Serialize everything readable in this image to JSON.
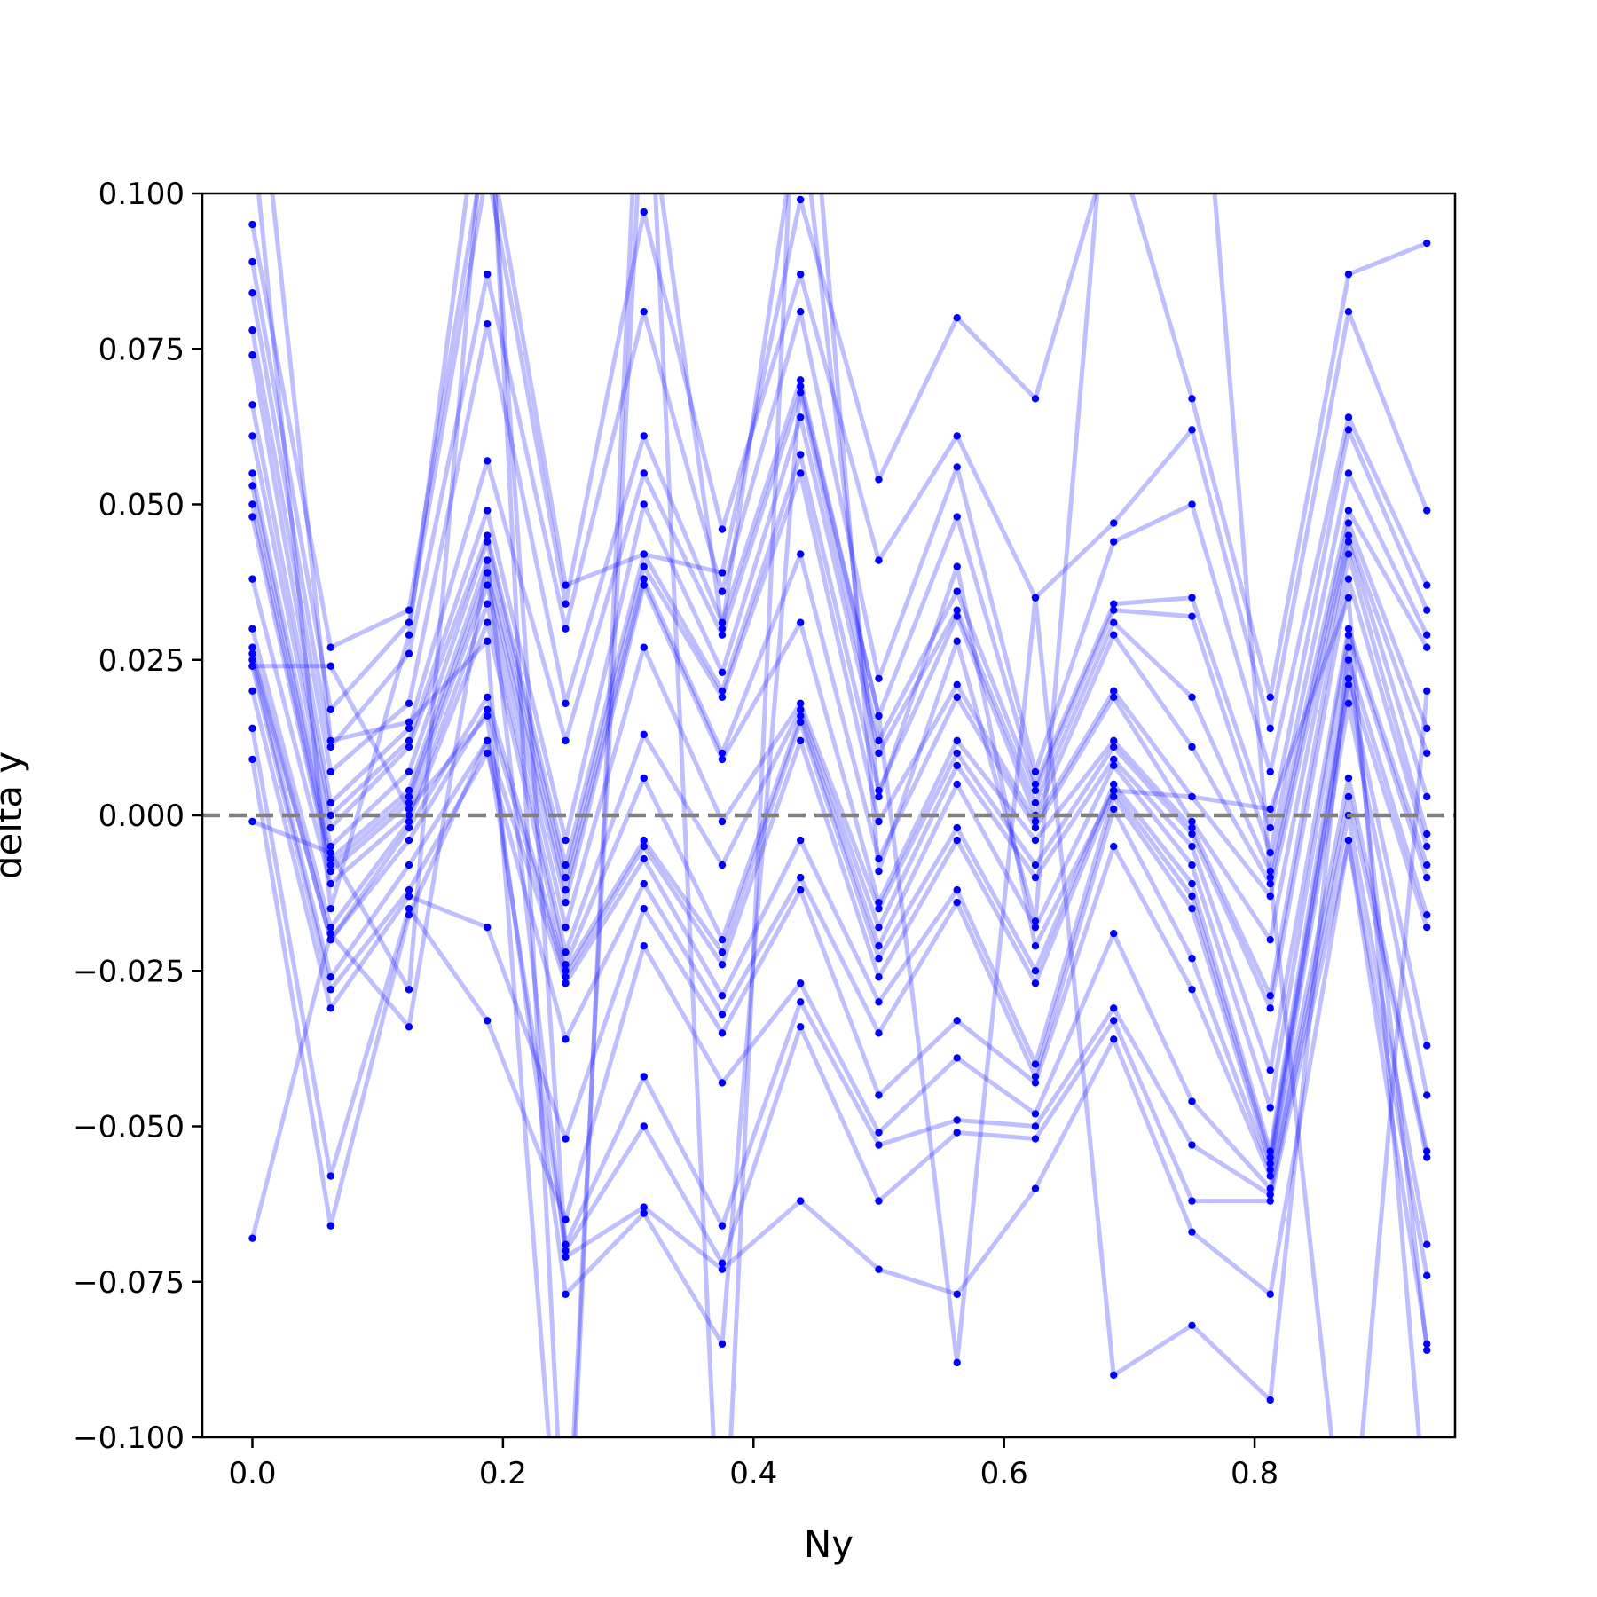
{
  "chart_data": {
    "type": "line",
    "title": "",
    "xlabel": "Ny",
    "ylabel": "delta y",
    "xlim": [
      -0.04,
      0.96
    ],
    "ylim": [
      -0.1,
      0.1
    ],
    "xticks": [
      0.0,
      0.2,
      0.4,
      0.6,
      0.8
    ],
    "xtick_labels": [
      "0.0",
      "0.2",
      "0.4",
      "0.6",
      "0.8"
    ],
    "yticks": [
      0.1,
      0.075,
      0.05,
      0.025,
      0.0,
      -0.025,
      -0.05,
      -0.075,
      -0.1
    ],
    "ytick_labels": [
      "0.100",
      "0.075",
      "0.050",
      "0.025",
      "0.000",
      "−0.025",
      "−0.050",
      "−0.075",
      "−0.100"
    ],
    "grid": false,
    "legend": "none",
    "x": [
      0.0,
      0.0625,
      0.125,
      0.1875,
      0.25,
      0.3125,
      0.375,
      0.4375,
      0.5,
      0.5625,
      0.625,
      0.6875,
      0.75,
      0.8125,
      0.875,
      0.9375
    ],
    "reference_line": {
      "y": 0.0,
      "style": "dashed",
      "color": "#808080"
    },
    "series_style": {
      "color": "#0000ff",
      "line_alpha": 0.25,
      "marker": "dot"
    },
    "series": [
      {
        "values": [
          0.095,
          0.027,
          0.033,
          0.11,
          0.037,
          0.042,
          0.039,
          0.099,
          0.054,
          0.08,
          0.067,
          0.11,
          0.067,
          0.019,
          0.087,
          0.092
        ]
      },
      {
        "values": [
          0.089,
          0.017,
          0.031,
          0.104,
          0.034,
          0.097,
          0.046,
          0.087,
          0.041,
          0.061,
          0.035,
          0.047,
          0.062,
          0.014,
          0.081,
          0.049
        ]
      },
      {
        "values": [
          0.084,
          0.011,
          0.026,
          0.087,
          0.03,
          0.081,
          0.036,
          0.081,
          0.022,
          0.056,
          0.007,
          0.044,
          0.05,
          0.007,
          0.064,
          0.037
        ]
      },
      {
        "values": [
          0.078,
          0.007,
          0.018,
          0.079,
          0.018,
          0.061,
          0.031,
          0.07,
          0.016,
          0.048,
          0.005,
          0.034,
          0.035,
          -0.002,
          0.062,
          0.033
        ]
      },
      {
        "values": [
          0.074,
          0.002,
          0.014,
          0.057,
          0.012,
          0.055,
          0.029,
          0.068,
          0.012,
          0.036,
          0.004,
          0.033,
          0.032,
          -0.006,
          0.055,
          0.029
        ]
      },
      {
        "values": [
          0.066,
          0.0,
          0.012,
          0.049,
          -0.004,
          0.05,
          0.023,
          0.064,
          0.01,
          0.033,
          0.002,
          0.031,
          0.019,
          -0.009,
          0.049,
          0.027
        ]
      },
      {
        "values": [
          0.061,
          -0.002,
          0.011,
          0.045,
          -0.008,
          0.042,
          0.02,
          0.058,
          0.004,
          0.032,
          0.0,
          0.029,
          0.011,
          -0.011,
          0.047,
          0.014
        ]
      },
      {
        "values": [
          0.055,
          -0.005,
          0.007,
          0.044,
          -0.01,
          0.04,
          0.019,
          0.055,
          -0.001,
          0.021,
          -0.001,
          0.02,
          0.003,
          -0.013,
          0.045,
          0.01
        ]
      },
      {
        "values": [
          0.053,
          -0.007,
          0.004,
          0.041,
          -0.012,
          0.038,
          0.01,
          0.042,
          -0.007,
          0.019,
          -0.002,
          0.019,
          -0.001,
          -0.02,
          0.044,
          0.003
        ]
      },
      {
        "values": [
          0.05,
          -0.008,
          0.003,
          0.039,
          -0.014,
          0.037,
          0.009,
          0.031,
          -0.014,
          0.012,
          -0.004,
          0.012,
          -0.002,
          -0.029,
          0.042,
          -0.003
        ]
      },
      {
        "values": [
          0.048,
          -0.009,
          0.002,
          0.037,
          -0.018,
          0.027,
          -0.001,
          0.018,
          -0.015,
          0.01,
          -0.008,
          0.011,
          -0.003,
          -0.031,
          0.038,
          -0.005
        ]
      },
      {
        "values": [
          0.038,
          -0.011,
          0.0,
          0.034,
          -0.022,
          0.013,
          -0.008,
          0.017,
          -0.018,
          0.008,
          -0.01,
          0.009,
          -0.005,
          -0.041,
          0.03,
          -0.008
        ]
      },
      {
        "values": [
          0.03,
          -0.018,
          -0.001,
          0.031,
          -0.024,
          0.006,
          -0.02,
          0.016,
          -0.021,
          0.005,
          -0.018,
          0.008,
          -0.008,
          -0.047,
          0.029,
          -0.01
        ]
      },
      {
        "values": [
          0.027,
          -0.02,
          -0.002,
          0.019,
          -0.025,
          -0.004,
          -0.022,
          0.015,
          -0.023,
          -0.002,
          -0.025,
          0.005,
          -0.011,
          -0.054,
          0.025,
          -0.016
        ]
      },
      {
        "values": [
          0.026,
          -0.02,
          -0.004,
          0.017,
          -0.026,
          -0.005,
          -0.024,
          0.012,
          -0.026,
          -0.004,
          -0.027,
          0.004,
          -0.013,
          -0.055,
          0.022,
          -0.018
        ]
      },
      {
        "values": [
          0.025,
          -0.026,
          -0.008,
          0.012,
          -0.027,
          -0.007,
          -0.029,
          -0.004,
          -0.03,
          -0.012,
          -0.04,
          0.003,
          -0.015,
          -0.056,
          0.021,
          -0.037
        ]
      },
      {
        "values": [
          0.024,
          -0.028,
          -0.012,
          0.01,
          -0.036,
          -0.011,
          -0.032,
          -0.01,
          -0.035,
          -0.014,
          -0.042,
          0.001,
          -0.023,
          -0.057,
          0.018,
          -0.045
        ]
      },
      {
        "values": [
          0.02,
          -0.031,
          -0.013,
          -0.018,
          -0.052,
          -0.015,
          -0.035,
          -0.012,
          -0.045,
          -0.033,
          -0.043,
          -0.005,
          -0.028,
          -0.058,
          0.006,
          -0.054
        ]
      },
      {
        "values": [
          0.014,
          -0.058,
          -0.015,
          -0.033,
          -0.065,
          -0.021,
          -0.043,
          -0.027,
          -0.051,
          -0.039,
          -0.048,
          -0.019,
          -0.046,
          -0.06,
          0.003,
          -0.055
        ]
      },
      {
        "values": [
          0.009,
          -0.066,
          -0.016,
          0.012,
          -0.069,
          -0.042,
          -0.066,
          -0.03,
          -0.053,
          -0.049,
          -0.05,
          -0.031,
          -0.053,
          -0.061,
          0.0,
          -0.069
        ]
      },
      {
        "values": [
          -0.001,
          -0.006,
          -0.028,
          0.119,
          -0.07,
          -0.05,
          -0.072,
          -0.034,
          -0.062,
          -0.051,
          -0.052,
          -0.033,
          -0.062,
          -0.062,
          -0.004,
          -0.074
        ]
      },
      {
        "values": [
          -0.068,
          -0.019,
          -0.034,
          0.041,
          -0.071,
          -0.063,
          -0.073,
          -0.062,
          -0.073,
          -0.077,
          -0.06,
          -0.036,
          -0.067,
          -0.077,
          -0.004,
          -0.085
        ]
      },
      {
        "values": [
          0.024,
          0.024,
          0.001,
          0.016,
          -0.077,
          -0.064,
          -0.085,
          0.069,
          0.016,
          -0.088,
          0.035,
          -0.09,
          -0.082,
          -0.094,
          0.027,
          -0.086
        ]
      },
      {
        "values": [
          0.13,
          0.012,
          0.015,
          0.028,
          -0.135,
          0.14,
          -0.13,
          0.14,
          -0.009,
          0.028,
          -0.017,
          0.131,
          0.145,
          -0.01,
          -0.125,
          0.02
        ]
      },
      {
        "values": [
          0.11,
          -0.015,
          0.029,
          0.125,
          -0.125,
          0.12,
          0.03,
          0.115,
          0.003,
          0.04,
          -0.021,
          0.004,
          0.003,
          0.001,
          0.035,
          -0.115
        ]
      }
    ]
  }
}
